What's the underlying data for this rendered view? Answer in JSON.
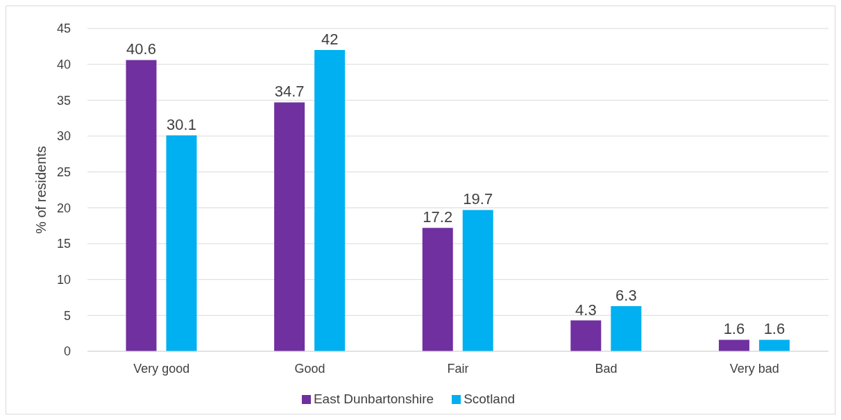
{
  "chart_data": {
    "type": "bar",
    "ylabel": "% of residents",
    "categories": [
      "Very good",
      "Good",
      "Fair",
      "Bad",
      "Very bad"
    ],
    "series": [
      {
        "name": "East Dunbartonshire",
        "color": "#7030a0",
        "values": [
          40.6,
          34.7,
          17.2,
          4.3,
          1.6
        ]
      },
      {
        "name": "Scotland",
        "color": "#00b0f0",
        "values": [
          30.1,
          42,
          19.7,
          6.3,
          1.6
        ]
      }
    ],
    "ylim": [
      0,
      45
    ],
    "yticks": [
      0,
      5,
      10,
      15,
      20,
      25,
      30,
      35,
      40,
      45
    ],
    "grid": "y",
    "legend": "bottom",
    "data_labels": true
  }
}
